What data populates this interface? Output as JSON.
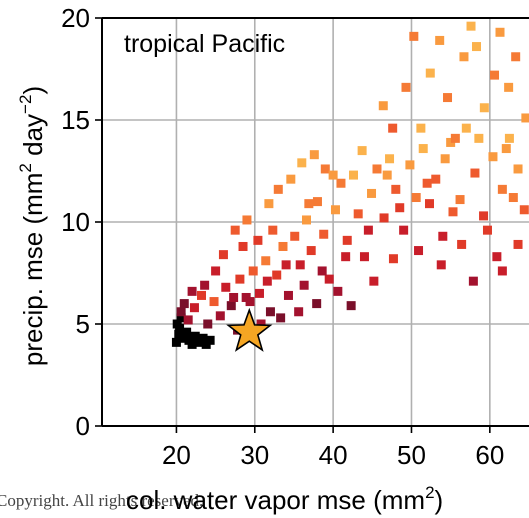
{
  "chart_data": {
    "type": "scatter",
    "annotation": "tropical Pacific",
    "xlabel": "col. water vapor mse (mm",
    "xlabel_sup": "2",
    "xlabel_end": ")",
    "ylabel": "precip. mse (mm",
    "ylabel_sup1": "2",
    "ylabel_mid": " day",
    "ylabel_sup2": "−2",
    "ylabel_end": ")",
    "xlim": [
      10.5,
      65
    ],
    "ylim": [
      0,
      20
    ],
    "xticks": [
      "20",
      "30",
      "40",
      "50",
      "60"
    ],
    "yticks": [
      "0",
      "5",
      "10",
      "15",
      "20"
    ],
    "grid": true,
    "colors": {
      "black": "#000000",
      "star": "#f5a623",
      "palette": [
        "#7a0f2a",
        "#a3122e",
        "#c81e2a",
        "#e03a28",
        "#ee5a2e",
        "#f57a35",
        "#f99a3f",
        "#fbb24c"
      ]
    },
    "series": [
      {
        "color_group": "black",
        "points": [
          [
            20.0,
            4.1
          ],
          [
            20.3,
            4.5
          ],
          [
            20.1,
            5.0
          ],
          [
            20.6,
            5.3
          ],
          [
            21.0,
            4.3
          ],
          [
            21.6,
            4.2
          ],
          [
            22.0,
            4.0
          ],
          [
            22.4,
            4.4
          ],
          [
            22.9,
            4.1
          ],
          [
            23.4,
            4.3
          ],
          [
            23.8,
            4.0
          ],
          [
            24.3,
            4.2
          ],
          [
            20.4,
            4.8
          ],
          [
            21.3,
            4.6
          ],
          [
            22.6,
            4.2
          ]
        ]
      },
      {
        "color_group": "palette",
        "points": [
          [
            20.6,
            5.6,
            0
          ],
          [
            21.5,
            5.2,
            1
          ],
          [
            22.3,
            5.8,
            2
          ],
          [
            23.2,
            6.4,
            3
          ],
          [
            24.0,
            5.0,
            0
          ],
          [
            24.8,
            6.1,
            4
          ],
          [
            25.6,
            5.4,
            1
          ],
          [
            26.3,
            6.8,
            2
          ],
          [
            27.0,
            5.9,
            0
          ],
          [
            28.1,
            7.2,
            3
          ],
          [
            28.9,
            6.3,
            1
          ],
          [
            29.8,
            7.6,
            4
          ],
          [
            30.6,
            6.5,
            2
          ],
          [
            31.4,
            8.1,
            5
          ],
          [
            32.0,
            5.6,
            0
          ],
          [
            32.8,
            7.4,
            3
          ],
          [
            33.6,
            8.8,
            5
          ],
          [
            34.3,
            6.4,
            1
          ],
          [
            35.1,
            9.3,
            4
          ],
          [
            35.8,
            7.9,
            2
          ],
          [
            36.6,
            10.1,
            6
          ],
          [
            37.2,
            8.6,
            3
          ],
          [
            38.0,
            11.0,
            5
          ],
          [
            38.8,
            9.4,
            4
          ],
          [
            39.5,
            7.2,
            2
          ],
          [
            40.3,
            10.6,
            6
          ],
          [
            41.0,
            11.9,
            5
          ],
          [
            41.8,
            9.1,
            3
          ],
          [
            42.6,
            12.3,
            7
          ],
          [
            43.2,
            10.4,
            4
          ],
          [
            44.0,
            8.3,
            2
          ],
          [
            44.9,
            11.4,
            6
          ],
          [
            45.6,
            12.6,
            5
          ],
          [
            46.5,
            10.2,
            3
          ],
          [
            47.2,
            13.1,
            7
          ],
          [
            48.0,
            11.6,
            4
          ],
          [
            49.0,
            9.6,
            2
          ],
          [
            49.8,
            12.8,
            6
          ],
          [
            50.6,
            11.2,
            5
          ],
          [
            51.5,
            13.6,
            7
          ],
          [
            52.3,
            10.9,
            3
          ],
          [
            53.1,
            12.1,
            4
          ],
          [
            54.0,
            9.3,
            2
          ],
          [
            55.0,
            13.9,
            6
          ],
          [
            56.2,
            11.1,
            5
          ],
          [
            57.0,
            14.6,
            7
          ],
          [
            58.1,
            12.4,
            4
          ],
          [
            59.2,
            10.3,
            3
          ],
          [
            60.4,
            13.2,
            6
          ],
          [
            61.6,
            11.6,
            5
          ],
          [
            62.5,
            14.1,
            7
          ],
          [
            63.6,
            12.6,
            6
          ],
          [
            64.4,
            10.6,
            4
          ],
          [
            26.0,
            8.4,
            3
          ],
          [
            27.5,
            9.6,
            4
          ],
          [
            29.0,
            10.1,
            5
          ],
          [
            30.4,
            9.1,
            3
          ],
          [
            31.8,
            10.9,
            6
          ],
          [
            33.0,
            11.6,
            5
          ],
          [
            34.6,
            12.1,
            6
          ],
          [
            36.0,
            12.9,
            7
          ],
          [
            37.6,
            13.3,
            6
          ],
          [
            39.0,
            12.6,
            5
          ],
          [
            25.0,
            7.6,
            2
          ],
          [
            23.6,
            6.9,
            1
          ],
          [
            22.0,
            6.6,
            1
          ],
          [
            21.0,
            6.0,
            0
          ],
          [
            27.8,
            4.7,
            0
          ],
          [
            30.8,
            5.0,
            1
          ],
          [
            33.3,
            5.3,
            0
          ],
          [
            35.6,
            5.6,
            1
          ],
          [
            37.9,
            6.0,
            0
          ],
          [
            40.6,
            6.6,
            1
          ],
          [
            42.3,
            5.9,
            0
          ],
          [
            45.2,
            7.1,
            2
          ],
          [
            47.7,
            8.2,
            3
          ],
          [
            50.9,
            8.6,
            2
          ],
          [
            46.4,
            15.7,
            6
          ],
          [
            49.3,
            16.6,
            5
          ],
          [
            52.4,
            17.3,
            7
          ],
          [
            54.6,
            16.1,
            5
          ],
          [
            56.7,
            18.1,
            6
          ],
          [
            58.3,
            18.6,
            7
          ],
          [
            60.6,
            17.2,
            5
          ],
          [
            62.4,
            16.6,
            6
          ],
          [
            50.3,
            19.1,
            5
          ],
          [
            53.6,
            18.9,
            6
          ],
          [
            57.6,
            19.6,
            7
          ],
          [
            61.3,
            19.3,
            6
          ],
          [
            63.3,
            18.1,
            5
          ],
          [
            47.6,
            14.6,
            4
          ],
          [
            59.3,
            15.6,
            7
          ],
          [
            64.6,
            15.1,
            6
          ],
          [
            55.6,
            14.1,
            5
          ],
          [
            52.0,
            11.9,
            4
          ],
          [
            48.5,
            10.7,
            3
          ],
          [
            44.5,
            9.6,
            2
          ],
          [
            41.6,
            8.3,
            2
          ],
          [
            38.6,
            7.6,
            1
          ],
          [
            36.3,
            6.9,
            1
          ],
          [
            34.0,
            7.9,
            2
          ],
          [
            31.6,
            7.1,
            2
          ],
          [
            29.4,
            6.1,
            1
          ],
          [
            27.3,
            6.3,
            1
          ],
          [
            28.5,
            8.8,
            3
          ],
          [
            32.3,
            9.6,
            4
          ],
          [
            36.9,
            10.9,
            5
          ],
          [
            40.0,
            12.3,
            6
          ],
          [
            43.7,
            13.5,
            7
          ],
          [
            46.9,
            12.3,
            6
          ],
          [
            51.2,
            14.6,
            7
          ],
          [
            54.3,
            13.1,
            6
          ],
          [
            58.6,
            14.1,
            7
          ],
          [
            62.1,
            13.6,
            6
          ],
          [
            57.9,
            7.1,
            1
          ],
          [
            60.9,
            8.3,
            2
          ],
          [
            63.6,
            8.9,
            3
          ],
          [
            61.6,
            7.6,
            2
          ],
          [
            56.4,
            8.9,
            3
          ],
          [
            53.8,
            7.9,
            2
          ],
          [
            55.3,
            10.5,
            4
          ],
          [
            59.7,
            9.6,
            3
          ],
          [
            63.0,
            11.2,
            5
          ]
        ]
      }
    ],
    "star": {
      "x": 29.3,
      "y": 4.6
    }
  },
  "footer": {
    "copyright": "Copyright. All rights reserved."
  }
}
